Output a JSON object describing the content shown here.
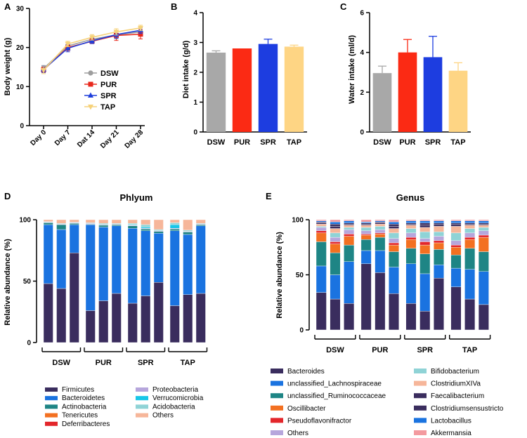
{
  "chart_data": [
    {
      "panel": "A",
      "type": "line",
      "title": "",
      "xlabel": "",
      "ylabel": "Body weight (g)",
      "ylim": [
        0,
        30
      ],
      "yticks": [
        0,
        10,
        20,
        30
      ],
      "categories": [
        "Day 0",
        "Day 7",
        "Dat 14",
        "Day 21",
        "Day 28"
      ],
      "series": [
        {
          "name": "DSW",
          "color": "#9e9e9e",
          "marker": "circle",
          "values": [
            14.6,
            20.4,
            22.1,
            23.2,
            24.0
          ],
          "err": [
            0.8,
            0.9,
            0.8,
            1.0,
            1.0
          ]
        },
        {
          "name": "PUR",
          "color": "#e8281c",
          "marker": "square",
          "values": [
            14.3,
            20.0,
            21.6,
            23.1,
            23.4
          ],
          "err": [
            0.7,
            0.8,
            0.6,
            1.3,
            1.2
          ]
        },
        {
          "name": "SPR",
          "color": "#1f3fdb",
          "marker": "triangle",
          "values": [
            14.4,
            19.8,
            21.7,
            23.3,
            24.4
          ],
          "err": [
            0.8,
            0.9,
            0.7,
            0.9,
            0.8
          ]
        },
        {
          "name": "TAP",
          "color": "#f6d27a",
          "marker": "triangle-down",
          "values": [
            14.2,
            20.9,
            22.6,
            24.0,
            25.0
          ],
          "err": [
            0.9,
            0.7,
            0.7,
            0.8,
            0.7
          ]
        }
      ],
      "legend": "center-right"
    },
    {
      "panel": "B",
      "type": "bar",
      "title": "",
      "xlabel": "",
      "ylabel": "Diet intake (g/d)",
      "ylim": [
        0,
        4
      ],
      "yticks": [
        0,
        1,
        2,
        3,
        4
      ],
      "categories": [
        "DSW",
        "PUR",
        "SPR",
        "TAP"
      ],
      "values": [
        2.66,
        2.8,
        2.95,
        2.86
      ],
      "err": [
        0.06,
        0.0,
        0.16,
        0.05
      ],
      "colors": [
        "#a8a8a8",
        "#fb2a14",
        "#1d3de0",
        "#fed584"
      ]
    },
    {
      "panel": "C",
      "type": "bar",
      "title": "",
      "xlabel": "",
      "ylabel": "Water intake (ml/d)",
      "ylim": [
        0,
        6
      ],
      "yticks": [
        0,
        2,
        4,
        6
      ],
      "categories": [
        "DSW",
        "PUR",
        "SPR",
        "TAP"
      ],
      "values": [
        2.96,
        4.0,
        3.76,
        3.08
      ],
      "err": [
        0.35,
        0.65,
        1.05,
        0.4
      ],
      "colors": [
        "#a8a8a8",
        "#fb2a14",
        "#1d3de0",
        "#fed584"
      ]
    },
    {
      "panel": "D",
      "type": "bar",
      "stacked": true,
      "title": "Phlyum",
      "xlabel": "",
      "ylabel": "Relative abundance (%)",
      "ylim": [
        0,
        100
      ],
      "yticks": [
        0,
        50,
        100
      ],
      "groups": [
        "DSW",
        "PUR",
        "SPR",
        "TAP"
      ],
      "bars_per_group": 3,
      "legend_columns": [
        [
          "Firmicutes",
          "Bacteroidetes",
          "Actinobacteria",
          "Tenericutes",
          "Deferribacteres"
        ],
        [
          "Proteobacteria",
          "Verrucomicrobia",
          "Acidobacteria",
          "Others"
        ]
      ],
      "series": [
        {
          "name": "Firmicutes",
          "color": "#3a2d5e",
          "values": [
            48,
            44,
            73,
            26,
            34,
            40,
            32,
            38,
            49,
            30,
            39,
            40
          ]
        },
        {
          "name": "Bacteroidetes",
          "color": "#1a73e0",
          "values": [
            48,
            48,
            23,
            70,
            60,
            55,
            61,
            53,
            40,
            61,
            49,
            55
          ]
        },
        {
          "name": "Actinobacteria",
          "color": "#1e8585",
          "values": [
            1.5,
            4,
            1,
            0.5,
            1.5,
            1,
            2,
            1.5,
            1.5,
            1.5,
            2,
            1
          ]
        },
        {
          "name": "Tenericutes",
          "color": "#f37021",
          "values": [
            0,
            0,
            0,
            0,
            0,
            0,
            0,
            0,
            0,
            0,
            0,
            0
          ]
        },
        {
          "name": "Deferribacteres",
          "color": "#e3262b",
          "values": [
            0,
            0,
            0,
            0,
            0,
            0,
            0,
            0,
            0,
            0,
            0,
            0
          ]
        },
        {
          "name": "Proteobacteria",
          "color": "#b6a6dc",
          "values": [
            0.5,
            0.5,
            0.5,
            0.5,
            0.5,
            0.5,
            0.5,
            0.5,
            0.5,
            0.5,
            0.5,
            0.5
          ]
        },
        {
          "name": "Verrucomicrobia",
          "color": "#18c6e8",
          "values": [
            0,
            0,
            0,
            0,
            0,
            0,
            0.5,
            1,
            0,
            3,
            0,
            0
          ]
        },
        {
          "name": "Acidobacteria",
          "color": "#8fd3d6",
          "values": [
            0.5,
            0.5,
            0.5,
            0.5,
            1,
            0.5,
            1,
            2,
            1,
            1.5,
            1,
            0.5
          ]
        },
        {
          "name": "Others",
          "color": "#f6b69a",
          "values": [
            1.5,
            3,
            2,
            2.5,
            3,
            3,
            3,
            4,
            8,
            2.5,
            8.5,
            3
          ]
        }
      ]
    },
    {
      "panel": "E",
      "type": "bar",
      "stacked": true,
      "title": "Genus",
      "xlabel": "",
      "ylabel": "Relative abundance (%)",
      "ylim": [
        0,
        100
      ],
      "yticks": [
        0,
        50,
        100
      ],
      "groups": [
        "DSW",
        "PUR",
        "SPR",
        "TAP"
      ],
      "bars_per_group": 3,
      "legend_columns": [
        [
          "Bacteroides",
          "unclassified_Lachnospiraceae",
          "unclassified_Ruminococcaceae",
          "Oscillibacter",
          "Pseudoflavonifractor",
          "Others"
        ],
        [
          "Bifidobacterium",
          "ClostridiumXIVa",
          "Faecalibacterium",
          "Clostridiumsensustricto",
          "Lactobacillus",
          "Akkermansia"
        ]
      ],
      "series": [
        {
          "name": "Bacteroides",
          "color": "#3a2d5e",
          "values": [
            34,
            28,
            24,
            60,
            52,
            33,
            24,
            17,
            47,
            39,
            28,
            23
          ]
        },
        {
          "name": "unclassified_Lachnospiraceae",
          "color": "#1a73e0",
          "values": [
            24,
            22,
            38,
            12,
            20,
            24,
            36,
            34,
            12,
            17,
            27,
            30
          ]
        },
        {
          "name": "unclassified_Ruminococcaceae",
          "color": "#1e8585",
          "values": [
            22,
            20,
            15,
            10,
            12,
            14,
            14,
            18,
            14,
            12,
            19,
            18
          ]
        },
        {
          "name": "Oscillibacter",
          "color": "#f37021",
          "values": [
            8,
            8,
            8,
            4,
            3,
            6,
            8,
            8,
            6,
            7,
            8,
            13
          ]
        },
        {
          "name": "Pseudoflavonifractor",
          "color": "#e3262b",
          "values": [
            2,
            2,
            2,
            1,
            1,
            2,
            2,
            3,
            2,
            2,
            2,
            2
          ]
        },
        {
          "name": "Others",
          "color": "#b6a6dc",
          "values": [
            3,
            4,
            4,
            3,
            3,
            4,
            4,
            3,
            4,
            4,
            4,
            4
          ]
        },
        {
          "name": "Bifidobacterium",
          "color": "#8fd3d6",
          "values": [
            1,
            4,
            2,
            3,
            3,
            5,
            4,
            6,
            4,
            7,
            4,
            3
          ]
        },
        {
          "name": "ClostridiumXIVa",
          "color": "#f6b69a",
          "values": [
            2,
            4,
            2,
            2,
            2,
            4,
            3,
            4,
            5,
            6,
            3,
            2
          ]
        },
        {
          "name": "Faecalibacterium",
          "color": "#3a2d5e",
          "values": [
            1,
            2,
            1,
            1,
            1,
            2,
            1,
            2,
            2,
            2,
            1,
            1
          ]
        },
        {
          "name": "Clostridiumsensustricto",
          "color": "#3a2d5e",
          "values": [
            1,
            2,
            1,
            1,
            1,
            2,
            1,
            2,
            1,
            1,
            1,
            1
          ]
        },
        {
          "name": "Lactobacillus",
          "color": "#1a73e0",
          "values": [
            1,
            2,
            2,
            1,
            1,
            2,
            2,
            2,
            2,
            2,
            2,
            2
          ]
        },
        {
          "name": "Akkermansia",
          "color": "#f39a9f",
          "values": [
            1,
            2,
            1,
            2,
            1,
            2,
            1,
            1,
            1,
            1,
            1,
            1
          ]
        }
      ]
    }
  ]
}
